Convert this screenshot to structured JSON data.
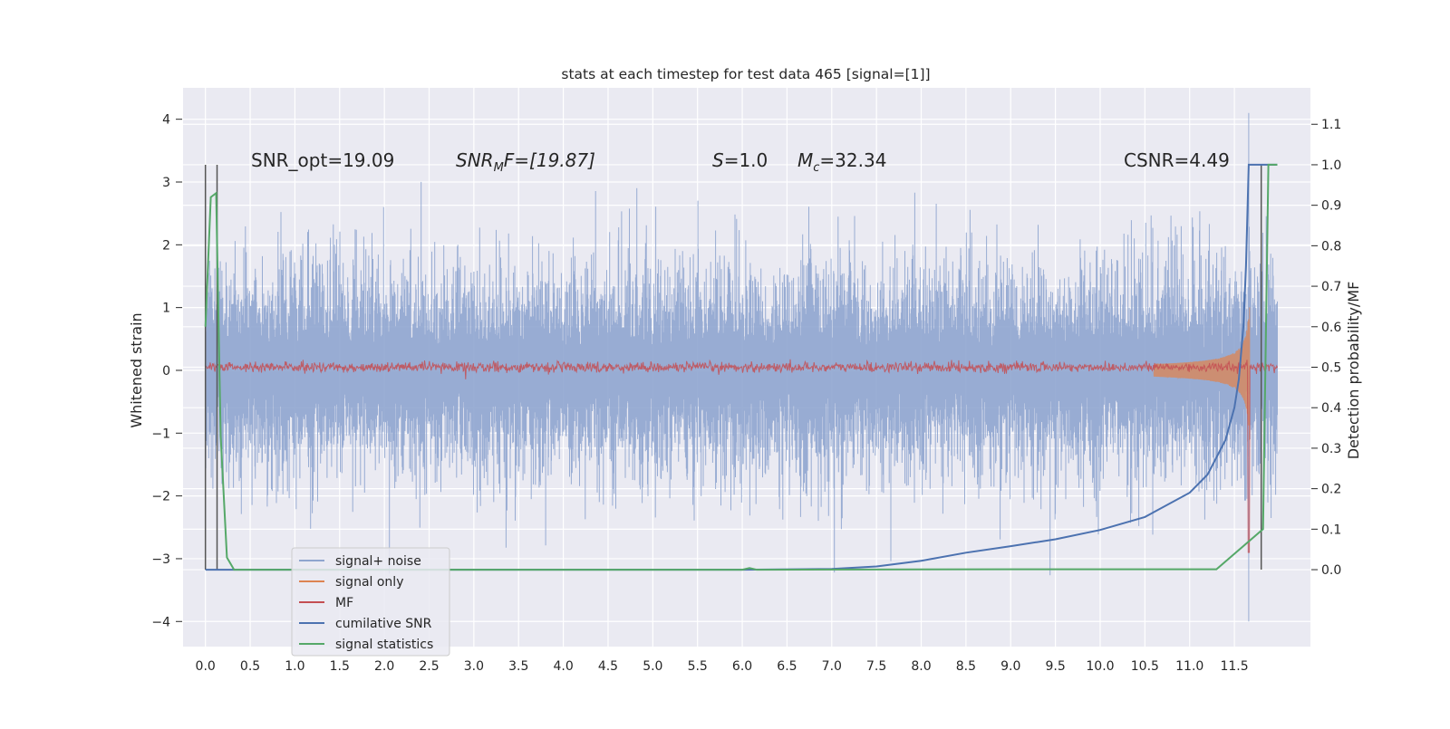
{
  "chart_data": {
    "type": "line",
    "title": "stats at each timestep for test data 465 [signal=[1]]",
    "ylabel": "Whitened strain",
    "ylabel_right": "Detection probability/MF",
    "xlim": [
      -0.25,
      12.35
    ],
    "ylim": [
      -4.4,
      4.5
    ],
    "ylim_right": [
      -0.19,
      1.19
    ],
    "x_ticks": [
      "0.0",
      "0.5",
      "1.0",
      "1.5",
      "2.0",
      "2.5",
      "3.0",
      "3.5",
      "4.0",
      "4.5",
      "5.0",
      "5.5",
      "6.0",
      "6.5",
      "7.0",
      "7.5",
      "8.0",
      "8.5",
      "9.0",
      "9.5",
      "10.0",
      "10.5",
      "11.0",
      "11.5"
    ],
    "y_ticks": [
      "4",
      "3",
      "2",
      "1",
      "0",
      "−1",
      "−2",
      "−3",
      "−4"
    ],
    "y_ticks_right": [
      "1.1",
      "1.0",
      "0.9",
      "0.8",
      "0.7",
      "0.6",
      "0.5",
      "0.4",
      "0.3",
      "0.2",
      "0.1",
      "0.0"
    ],
    "grid": true,
    "legend_location": "lower-left",
    "legend": [
      "signal+ noise",
      "signal only",
      "MF",
      "cumilative SNR",
      "signal statistics"
    ],
    "annotations": {
      "snr_opt": "SNR_opt=19.09",
      "snr_mf_prefix": "SNR",
      "snr_mf_sub": "M",
      "snr_mf_suffix": "F=[19.87]",
      "s_var": "S",
      "s_value": "=1.0",
      "mc_var": "M",
      "mc_sub": "c",
      "mc_value": "=32.34",
      "csnr": "CSNR=4.49"
    },
    "colors": {
      "noise": "#8fa5cf",
      "signal_only": "#dd8452",
      "mf": "#c44e52",
      "cumulative": "#4c72b0",
      "statistics": "#55a868",
      "markers": "#555555",
      "axes_bg": "#eaeaf2"
    },
    "series": [
      {
        "name": "signal+ noise",
        "axis": "left",
        "description_range": {
          "x_start": 0.0,
          "x_end": 11.98,
          "typical_band": [
            -1.2,
            1.2
          ],
          "peaks": [
            [
              11.66,
              4.1
            ],
            [
              11.66,
              -4.0
            ]
          ]
        }
      },
      {
        "name": "signal only",
        "axis": "left",
        "chirp": {
          "x_start": 10.6,
          "x_end": 11.67,
          "peak_amp": 1.5,
          "merger": 11.67
        }
      },
      {
        "name": "MF",
        "axis": "left",
        "baseline": 0.05,
        "peak": [
          11.66,
          -2.9
        ]
      },
      {
        "name": "cumilative SNR",
        "axis": "right",
        "x": [
          0.0,
          6.0,
          7.0,
          7.5,
          8.0,
          8.5,
          9.0,
          9.5,
          10.0,
          10.5,
          11.0,
          11.2,
          11.4,
          11.5,
          11.55,
          11.6,
          11.63,
          11.66,
          11.98
        ],
        "y": [
          0.0,
          0.0,
          0.002,
          0.008,
          0.022,
          0.042,
          0.058,
          0.075,
          0.098,
          0.13,
          0.19,
          0.235,
          0.32,
          0.4,
          0.47,
          0.6,
          0.75,
          1.0,
          1.0
        ]
      },
      {
        "name": "signal statistics",
        "axis": "right",
        "x": [
          0.0,
          0.06,
          0.12,
          0.17,
          0.24,
          0.32,
          6.0,
          6.08,
          6.16,
          9.0,
          11.3,
          11.82,
          11.88,
          11.98
        ],
        "y": [
          0.6,
          0.92,
          0.93,
          0.33,
          0.03,
          0.0,
          0.0,
          0.004,
          0.0,
          0.001,
          0.001,
          0.1,
          1.0,
          1.0
        ]
      },
      {
        "name": "markers",
        "axis": "right",
        "vertical_lines_x": [
          0.0,
          0.13,
          11.8
        ]
      }
    ]
  }
}
